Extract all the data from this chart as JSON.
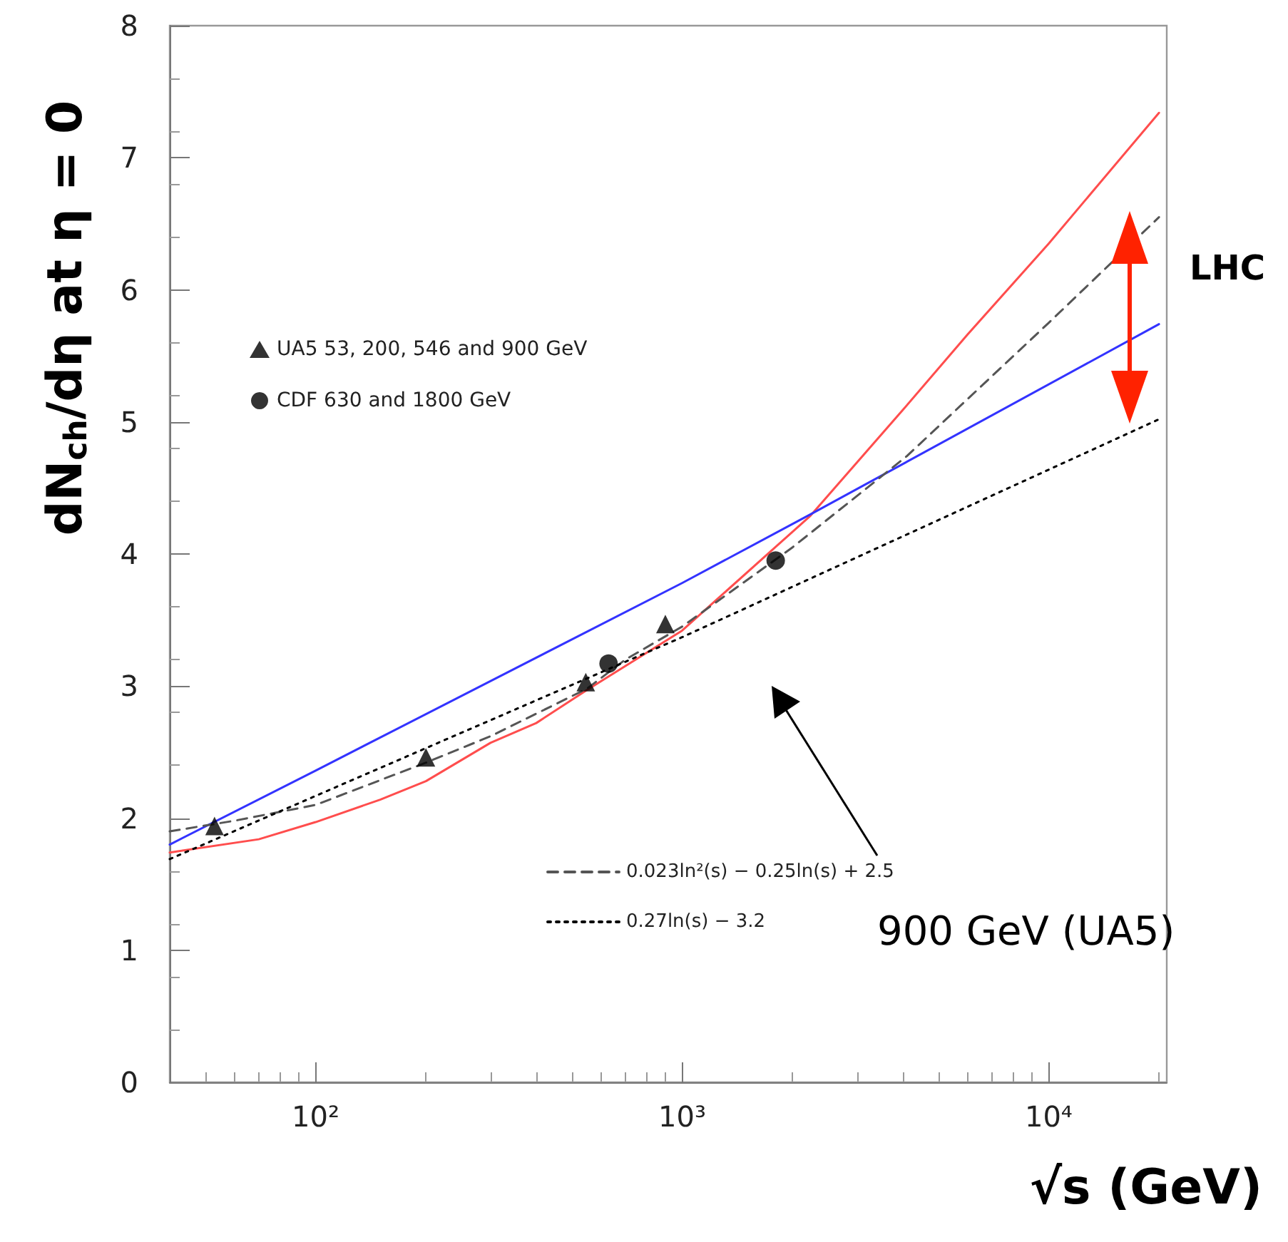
{
  "chart_data": {
    "type": "line",
    "xlabel": "√s (GeV)",
    "ylabel": "dN$_{ch}$/dη at η = 0",
    "log": "x",
    "xlim": [
      40,
      21000
    ],
    "xticks": [
      {
        "value": 100,
        "label": "10²"
      },
      {
        "value": 1000,
        "label": "10³"
      },
      {
        "value": 10000,
        "label": "10⁴"
      }
    ],
    "ylim": [
      0,
      8
    ],
    "yticks": [
      0,
      1,
      2,
      3,
      4,
      5,
      6,
      7,
      8
    ],
    "grid": false,
    "legend": "left",
    "series": [
      {
        "color": "#ff4d4d",
        "marker": "none",
        "x": [
          40,
          70,
          100,
          150,
          200,
          300,
          400,
          550,
          1000,
          2240,
          4000,
          6000,
          10000,
          20000
        ],
        "values": [
          1.74,
          1.84,
          1.97,
          2.14,
          2.28,
          2.57,
          2.72,
          2.97,
          3.42,
          4.29,
          5.09,
          5.66,
          6.35,
          7.34
        ]
      },
      {
        "color": "#3333ff",
        "marker": "none",
        "x": [
          40,
          100,
          1000,
          2240,
          20000
        ],
        "values": [
          1.8,
          2.36,
          3.78,
          4.3,
          5.74
        ]
      },
      {
        "name": "0.023ln²(s) − 0.25ln(s) + 2.5",
        "color": "#555555",
        "marker": "none",
        "line_style": "dashed",
        "x": [
          40,
          60,
          100,
          200,
          300,
          550,
          700,
          1000,
          2000,
          4100,
          10000,
          20000
        ],
        "values": [
          1.9,
          1.98,
          2.1,
          2.42,
          2.62,
          2.98,
          3.2,
          3.45,
          4.05,
          4.74,
          5.75,
          6.55
        ]
      },
      {
        "name": "0.27ln(s) − 3.2",
        "color": "#000000",
        "marker": "none",
        "line_style": "dotted",
        "x": [
          40,
          1000,
          20000
        ],
        "values": [
          1.69,
          3.37,
          5.02
        ]
      },
      {
        "type": "scatter",
        "name": "UA5 53, 200, 546 and 900 GeV",
        "color": "#000000",
        "marker": "triangle",
        "x": [
          53,
          200,
          546,
          900
        ],
        "values": [
          1.94,
          2.46,
          3.03,
          3.47
        ]
      },
      {
        "type": "scatter",
        "name": "CDF 630 and 1800 GeV",
        "color": "#000000",
        "marker": "circle",
        "x": [
          630,
          1800
        ],
        "values": [
          3.17,
          3.95
        ]
      }
    ],
    "annotations": [
      "LHC",
      "900 GeV (UA5)"
    ]
  }
}
